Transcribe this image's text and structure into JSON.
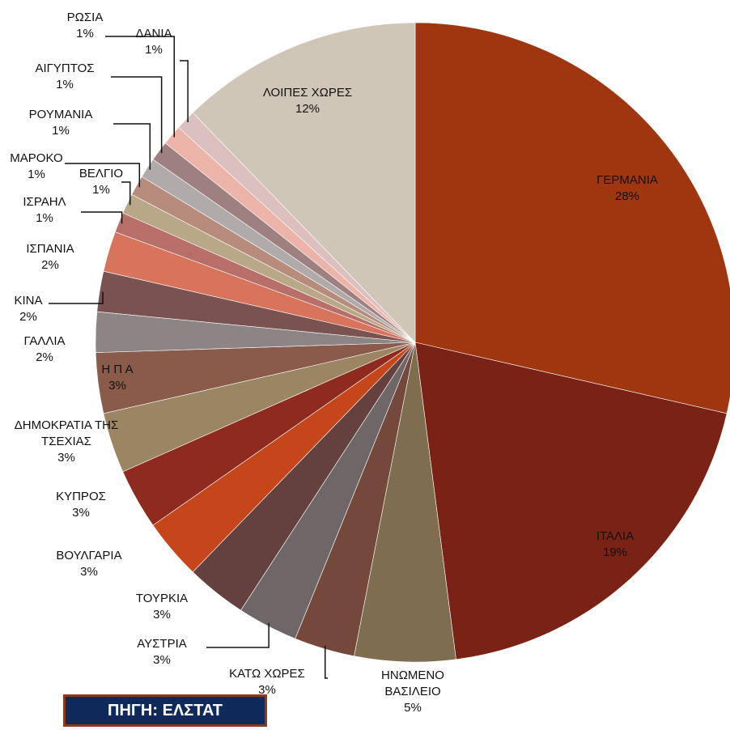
{
  "chart_data": {
    "type": "pie",
    "categories": [
      "ΓΕΡΜΑΝΙΑ",
      "ΙΤΑΛΙΑ",
      "ΗΝΩΜΕΝΟ ΒΑΣΙΛΕΙΟ",
      "ΚΑΤΩ ΧΩΡΕΣ",
      "ΑΥΣΤΡΙΑ",
      "ΤΟΥΡΚΙΑ",
      "ΒΟΥΛΓΑΡΙΑ",
      "ΚΥΠΡΟΣ",
      "ΔΗΜΟΚΡΑΤΙΑ ΤΗΣ ΤΣΕΧΙΑΣ",
      "Η Π Α",
      "ΓΑΛΛΙΑ",
      "ΚΙΝΑ",
      "ΙΣΠΑΝΙΑ",
      "ΙΣΡΑΗΛ",
      "ΒΕΛΓΙΟ",
      "ΜΑΡΟΚΟ",
      "ΡΟΥΜΑΝΙΑ",
      "ΑΙΓΥΠΤΟΣ",
      "ΡΩΣΙΑ",
      "ΔΑΝΙΑ",
      "ΛΟΙΠΕΣ ΧΩΡΕΣ"
    ],
    "values": [
      28,
      19,
      5,
      3,
      3,
      3,
      3,
      3,
      3,
      3,
      2,
      2,
      2,
      1,
      1,
      1,
      1,
      1,
      1,
      1,
      12
    ],
    "value_labels": [
      "28%",
      "19%",
      "5%",
      "3%",
      "3%",
      "3%",
      "3%",
      "3%",
      "3%",
      "3%",
      "2%",
      "2%",
      "2%",
      "1%",
      "1%",
      "1%",
      "1%",
      "1%",
      "1%",
      "1%",
      "12%"
    ],
    "colors": [
      "#a0360f",
      "#7a2216",
      "#7f6d4f",
      "#74493c",
      "#6f6767",
      "#64403f",
      "#c4461a",
      "#8f2a1e",
      "#9c8563",
      "#8a5a4a",
      "#8d8585",
      "#7a5250",
      "#d8735c",
      "#b86f6a",
      "#b8a888",
      "#b88c7c",
      "#b0aaaa",
      "#9e8080",
      "#ecb3a8",
      "#dcc0c0",
      "#d0c6b8"
    ],
    "source": "ΠΗΓΗ: ΕΛΣΤΑΤ"
  }
}
